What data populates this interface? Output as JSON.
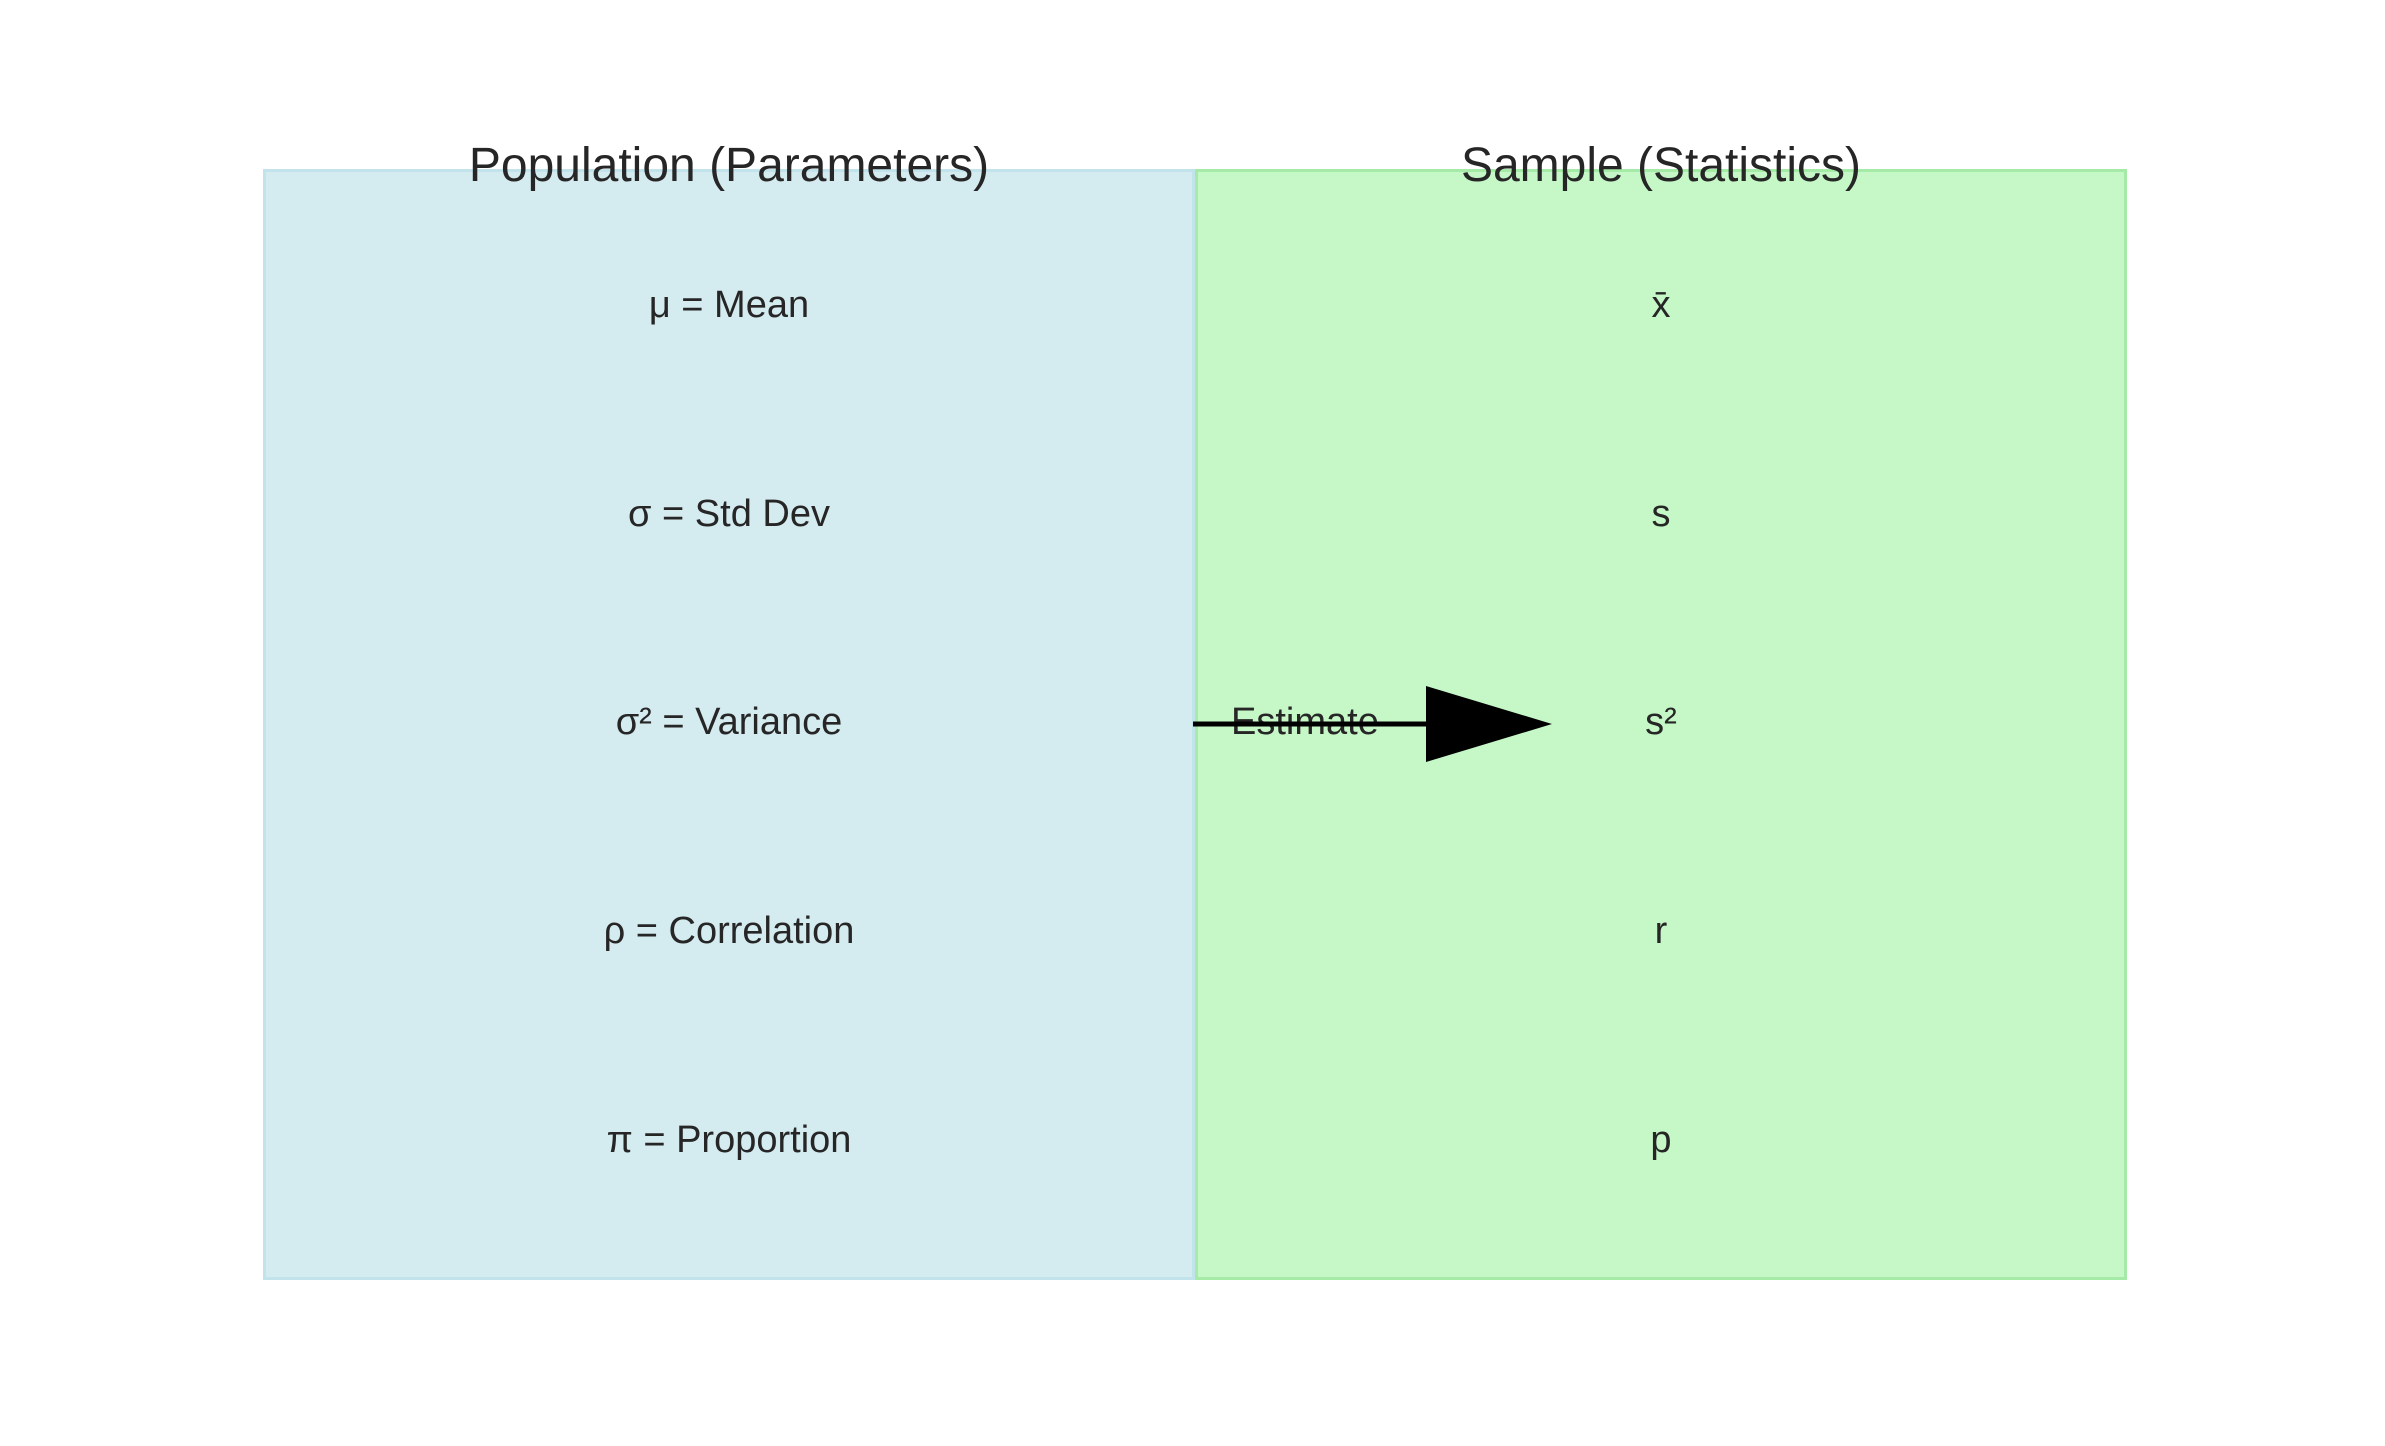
{
  "population": {
    "title": "Population (Parameters)",
    "items": [
      {
        "label": "μ = Mean"
      },
      {
        "label": "σ = Std Dev"
      },
      {
        "label": "σ² = Variance"
      },
      {
        "label": "ρ = Correlation"
      },
      {
        "label": "π = Proportion"
      }
    ]
  },
  "sample": {
    "title": "Sample (Statistics)",
    "items": [
      {
        "label": "x̄"
      },
      {
        "label": "s"
      },
      {
        "label": "s²"
      },
      {
        "label": "r"
      },
      {
        "label": "p"
      }
    ]
  },
  "arrow": {
    "label": "Estimate"
  },
  "colors": {
    "population_fill": "#d4ebf0",
    "sample_fill": "#c6f8c7",
    "arrow": "#000000"
  }
}
